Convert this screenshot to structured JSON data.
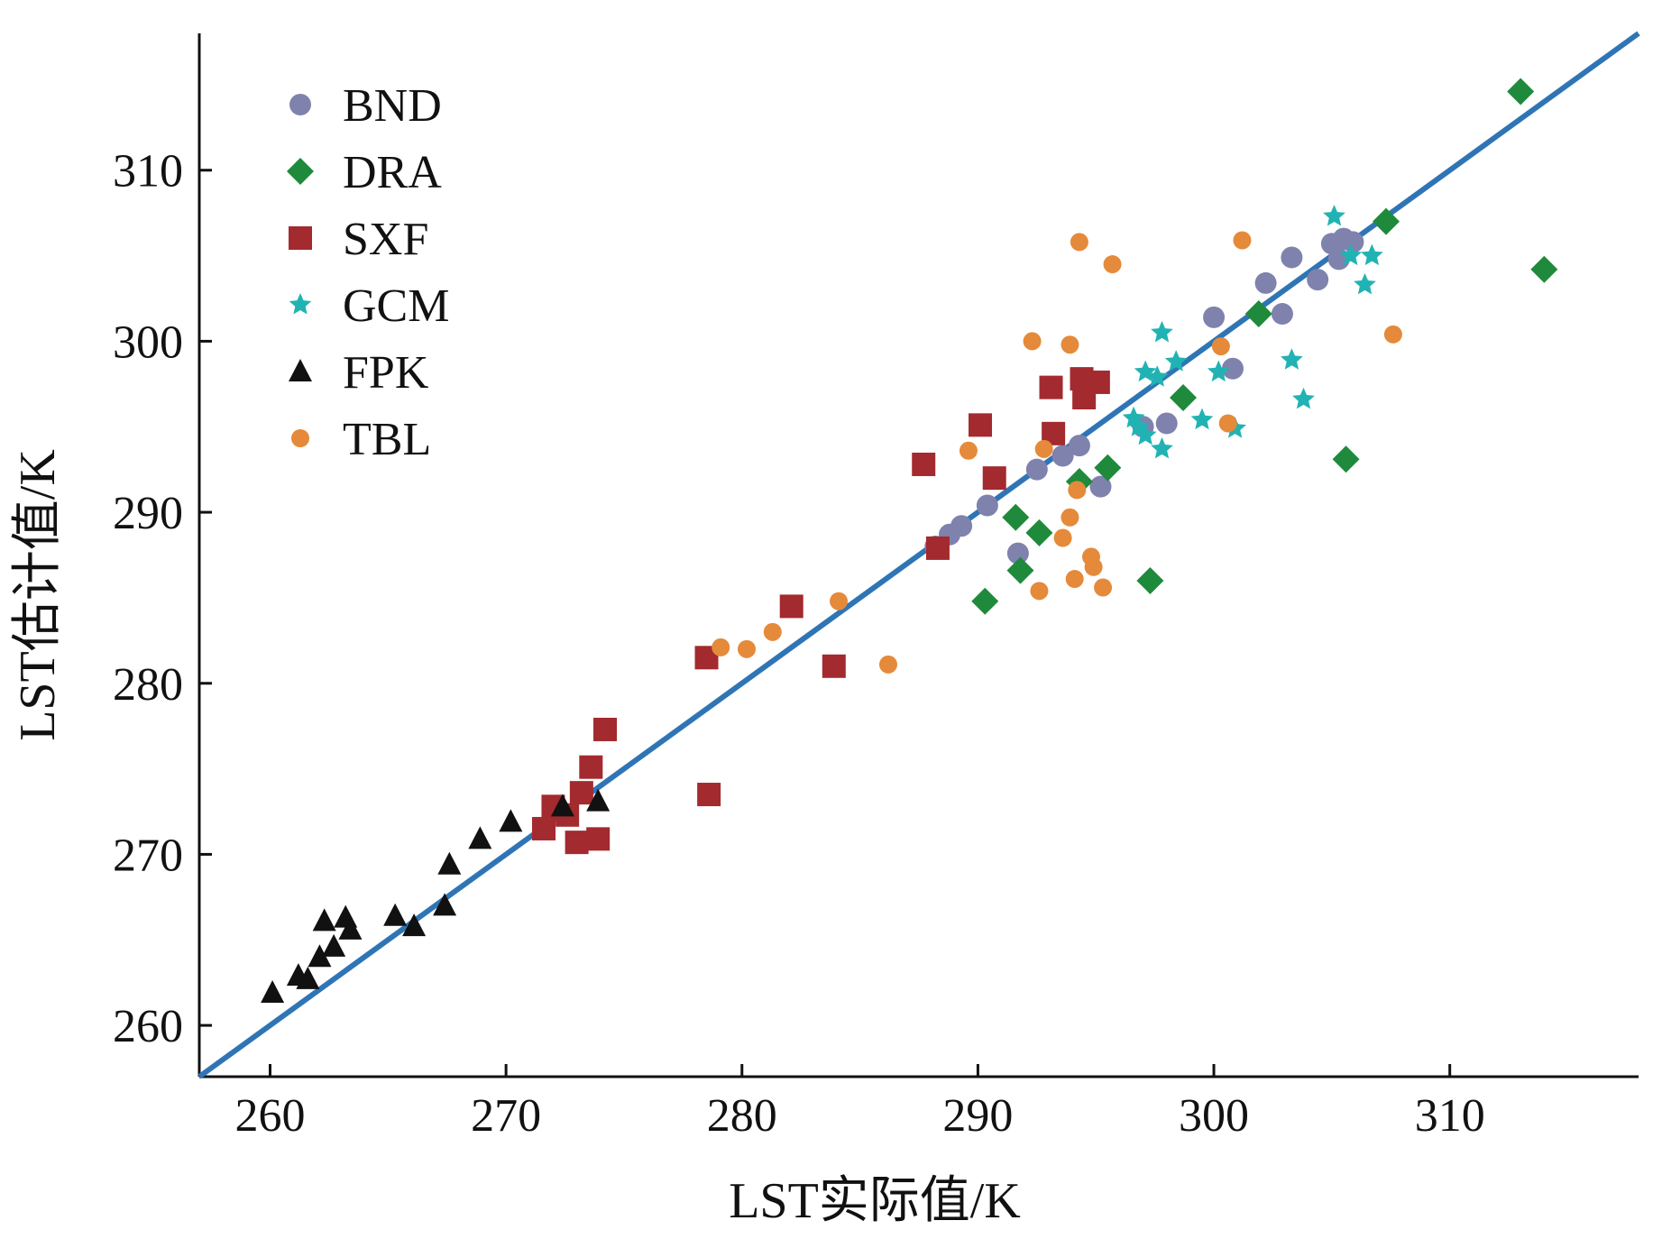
{
  "chart_data": {
    "type": "scatter",
    "xlabel": "LST实际值/K",
    "ylabel": "LST估计值/K",
    "xlim": [
      257,
      318
    ],
    "ylim": [
      257,
      318
    ],
    "x_ticks": [
      260,
      270,
      280,
      290,
      300,
      310
    ],
    "y_ticks": [
      260,
      270,
      280,
      290,
      300,
      310
    ],
    "legend": {
      "placement": "top-left"
    },
    "fit_line": {
      "x": [
        257,
        318
      ],
      "y": [
        257,
        318
      ],
      "color": "#2f75b5"
    },
    "series": [
      {
        "name": "BND",
        "marker": "circle",
        "color": "#7f82ad",
        "points": [
          [
            288.2,
            288.0
          ],
          [
            288.8,
            288.7
          ],
          [
            289.3,
            289.2
          ],
          [
            290.4,
            290.4
          ],
          [
            291.7,
            287.6
          ],
          [
            292.5,
            292.5
          ],
          [
            293.6,
            293.3
          ],
          [
            294.3,
            293.9
          ],
          [
            295.2,
            291.5
          ],
          [
            297.0,
            295.0
          ],
          [
            298.0,
            295.2
          ],
          [
            300.0,
            301.4
          ],
          [
            300.8,
            298.4
          ],
          [
            302.2,
            303.4
          ],
          [
            302.9,
            301.6
          ],
          [
            303.3,
            304.9
          ],
          [
            304.4,
            303.6
          ],
          [
            305.0,
            305.7
          ],
          [
            305.3,
            304.8
          ],
          [
            305.5,
            306.0
          ],
          [
            305.9,
            305.8
          ]
        ]
      },
      {
        "name": "DRA",
        "marker": "diamond",
        "color": "#1f8a3b",
        "points": [
          [
            290.3,
            284.8
          ],
          [
            291.6,
            289.7
          ],
          [
            291.8,
            286.6
          ],
          [
            292.6,
            288.8
          ],
          [
            294.3,
            291.8
          ],
          [
            295.5,
            292.6
          ],
          [
            297.3,
            286.0
          ],
          [
            298.7,
            296.7
          ],
          [
            301.9,
            301.6
          ],
          [
            305.6,
            293.1
          ],
          [
            307.3,
            307.0
          ],
          [
            313.0,
            314.6
          ],
          [
            314.0,
            304.2
          ]
        ]
      },
      {
        "name": "SXF",
        "marker": "square",
        "color": "#a32a2e",
        "points": [
          [
            271.6,
            271.5
          ],
          [
            272.0,
            272.8
          ],
          [
            272.6,
            272.3
          ],
          [
            273.0,
            270.7
          ],
          [
            273.2,
            273.6
          ],
          [
            273.6,
            275.1
          ],
          [
            273.9,
            270.9
          ],
          [
            274.2,
            277.3
          ],
          [
            278.5,
            281.5
          ],
          [
            278.6,
            273.5
          ],
          [
            282.1,
            284.5
          ],
          [
            283.9,
            281.0
          ],
          [
            287.7,
            292.8
          ],
          [
            288.3,
            287.9
          ],
          [
            290.1,
            295.1
          ],
          [
            290.7,
            292.0
          ],
          [
            293.1,
            297.3
          ],
          [
            293.2,
            294.6
          ],
          [
            294.4,
            297.8
          ],
          [
            294.5,
            296.7
          ],
          [
            295.1,
            297.6
          ]
        ]
      },
      {
        "name": "GCM",
        "marker": "star",
        "color": "#21b3b3",
        "points": [
          [
            296.6,
            295.5
          ],
          [
            296.8,
            295.0
          ],
          [
            297.1,
            294.5
          ],
          [
            297.1,
            298.2
          ],
          [
            297.6,
            297.9
          ],
          [
            297.8,
            300.5
          ],
          [
            297.8,
            293.7
          ],
          [
            298.4,
            298.8
          ],
          [
            299.5,
            295.4
          ],
          [
            300.2,
            298.2
          ],
          [
            300.9,
            294.9
          ],
          [
            303.3,
            298.9
          ],
          [
            303.8,
            296.6
          ],
          [
            305.1,
            307.3
          ],
          [
            305.8,
            305.0
          ],
          [
            306.4,
            303.3
          ],
          [
            306.7,
            305.0
          ]
        ]
      },
      {
        "name": "FPK",
        "marker": "triangle",
        "color": "#111111",
        "points": [
          [
            260.1,
            261.9
          ],
          [
            261.2,
            262.9
          ],
          [
            261.6,
            262.7
          ],
          [
            262.1,
            264.0
          ],
          [
            262.3,
            266.1
          ],
          [
            262.7,
            264.6
          ],
          [
            263.2,
            266.3
          ],
          [
            263.4,
            265.6
          ],
          [
            265.3,
            266.4
          ],
          [
            266.1,
            265.8
          ],
          [
            267.4,
            267.0
          ],
          [
            267.6,
            269.4
          ],
          [
            268.9,
            270.9
          ],
          [
            270.2,
            271.9
          ],
          [
            272.4,
            272.8
          ],
          [
            273.9,
            273.1
          ]
        ]
      },
      {
        "name": "TBL",
        "marker": "dot",
        "color": "#e58a3a",
        "points": [
          [
            279.1,
            282.1
          ],
          [
            280.2,
            282.0
          ],
          [
            281.3,
            283.0
          ],
          [
            284.1,
            284.8
          ],
          [
            286.2,
            281.1
          ],
          [
            289.6,
            293.6
          ],
          [
            292.3,
            300.0
          ],
          [
            292.6,
            285.4
          ],
          [
            292.8,
            293.7
          ],
          [
            293.6,
            288.5
          ],
          [
            293.9,
            289.7
          ],
          [
            293.9,
            299.8
          ],
          [
            294.1,
            286.1
          ],
          [
            294.2,
            291.3
          ],
          [
            294.3,
            305.8
          ],
          [
            294.8,
            287.4
          ],
          [
            294.9,
            286.8
          ],
          [
            295.3,
            285.6
          ],
          [
            295.7,
            304.5
          ],
          [
            300.3,
            299.7
          ],
          [
            300.6,
            295.2
          ],
          [
            301.2,
            305.9
          ],
          [
            307.6,
            300.4
          ]
        ]
      }
    ]
  }
}
